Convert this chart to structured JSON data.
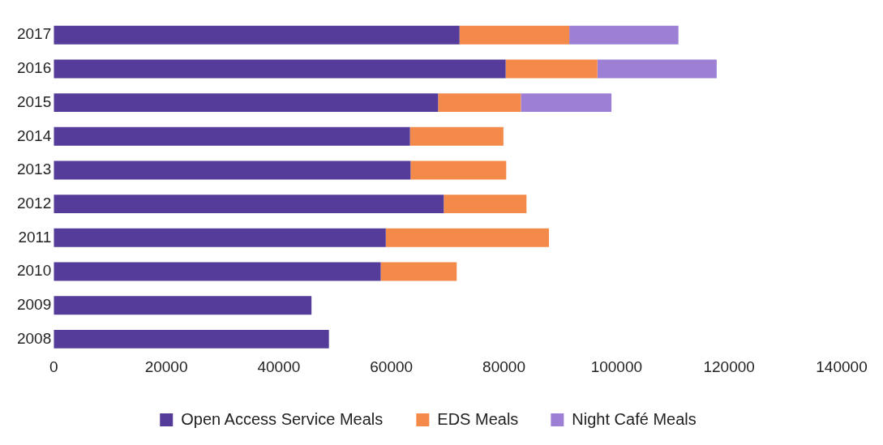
{
  "chart_data": {
    "type": "bar",
    "orientation": "horizontal",
    "stacked": true,
    "categories": [
      "2017",
      "2016",
      "2015",
      "2014",
      "2013",
      "2012",
      "2011",
      "2010",
      "2009",
      "2008"
    ],
    "series": [
      {
        "name": "Open Access Service Meals",
        "color": "#553c9a",
        "values": [
          72100,
          80300,
          68300,
          63300,
          63400,
          69300,
          59000,
          58100,
          45800,
          48900
        ]
      },
      {
        "name": "EDS Meals",
        "color": "#f48a4a",
        "values": [
          19500,
          16300,
          14700,
          16600,
          17000,
          14700,
          29000,
          13500,
          null,
          null
        ]
      },
      {
        "name": "Night Café Meals",
        "color": "#9d80d6",
        "values": [
          19400,
          21200,
          16100,
          null,
          null,
          null,
          null,
          null,
          null,
          null
        ]
      }
    ],
    "xlim": [
      0,
      140000
    ],
    "xticks": [
      0,
      20000,
      40000,
      60000,
      80000,
      100000,
      120000,
      140000
    ],
    "grid": false,
    "legend": "bottom"
  }
}
